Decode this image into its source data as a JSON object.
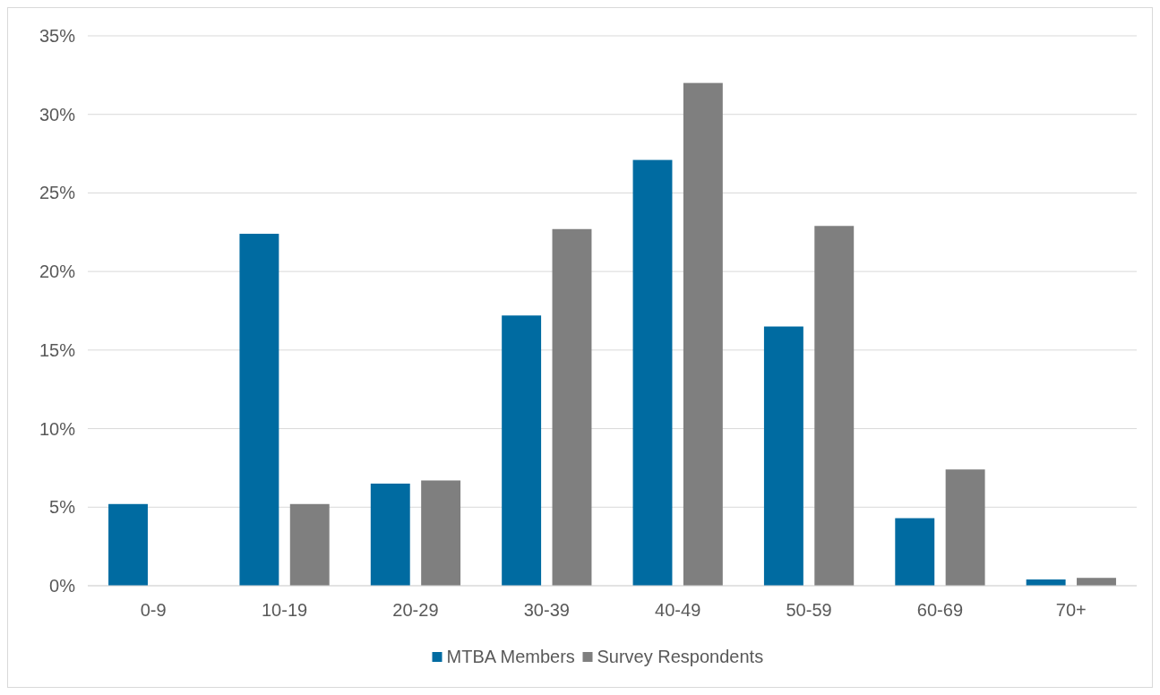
{
  "chart_data": {
    "type": "bar",
    "categories": [
      "0-9",
      "10-19",
      "20-29",
      "30-39",
      "40-49",
      "50-59",
      "60-69",
      "70+"
    ],
    "series": [
      {
        "name": "MTBA Members",
        "color": "#006ba1",
        "values": [
          5.2,
          22.4,
          6.5,
          17.2,
          27.1,
          16.5,
          4.3,
          0.4
        ]
      },
      {
        "name": "Survey Respondents",
        "color": "#7f7f7f",
        "values": [
          0,
          5.2,
          6.7,
          22.7,
          32.0,
          22.9,
          7.4,
          0.5
        ]
      }
    ],
    "ylim": [
      0,
      35
    ],
    "yticks": [
      {
        "value": 0,
        "label": "0%"
      },
      {
        "value": 5,
        "label": "5%"
      },
      {
        "value": 10,
        "label": "10%"
      },
      {
        "value": 15,
        "label": "15%"
      },
      {
        "value": 20,
        "label": "20%"
      },
      {
        "value": 25,
        "label": "25%"
      },
      {
        "value": 30,
        "label": "30%"
      },
      {
        "value": 35,
        "label": "35%"
      }
    ],
    "grid": "y",
    "legend": "bottom"
  }
}
